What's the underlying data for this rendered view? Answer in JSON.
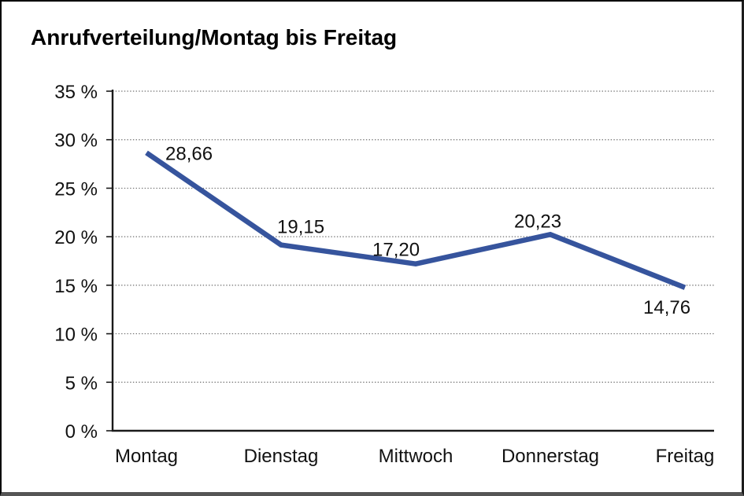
{
  "window": {
    "background": "#ffffff",
    "border_color": "#000000"
  },
  "header": {
    "title": "Anrufverteilung/Montag bis Freitag"
  },
  "chart_data": {
    "type": "line",
    "title": "Anrufverteilung/Montag bis Freitag",
    "categories": [
      "Montag",
      "Dienstag",
      "Mittwoch",
      "Donnerstag",
      "Freitag"
    ],
    "series": [
      {
        "name": "Anrufverteilung",
        "values": [
          28.66,
          19.15,
          17.2,
          20.23,
          14.76
        ]
      }
    ],
    "point_labels": [
      "28,66",
      "19,15",
      "17,20",
      "20,23",
      "14,76"
    ],
    "ytick_values": [
      0,
      5,
      10,
      15,
      20,
      25,
      30,
      35
    ],
    "ytick_labels": [
      "0 %",
      "5 %",
      "10 %",
      "15 %",
      "20 %",
      "25 %",
      "30 %",
      "35 %"
    ],
    "ylim": [
      0,
      35
    ],
    "ytick_step": 5,
    "xlabel": "",
    "ylabel": "",
    "grid": "horizontal-dotted",
    "legend": "none",
    "line_color": "#36549D",
    "text_color": "#111111",
    "label_decimal_separator": ","
  }
}
